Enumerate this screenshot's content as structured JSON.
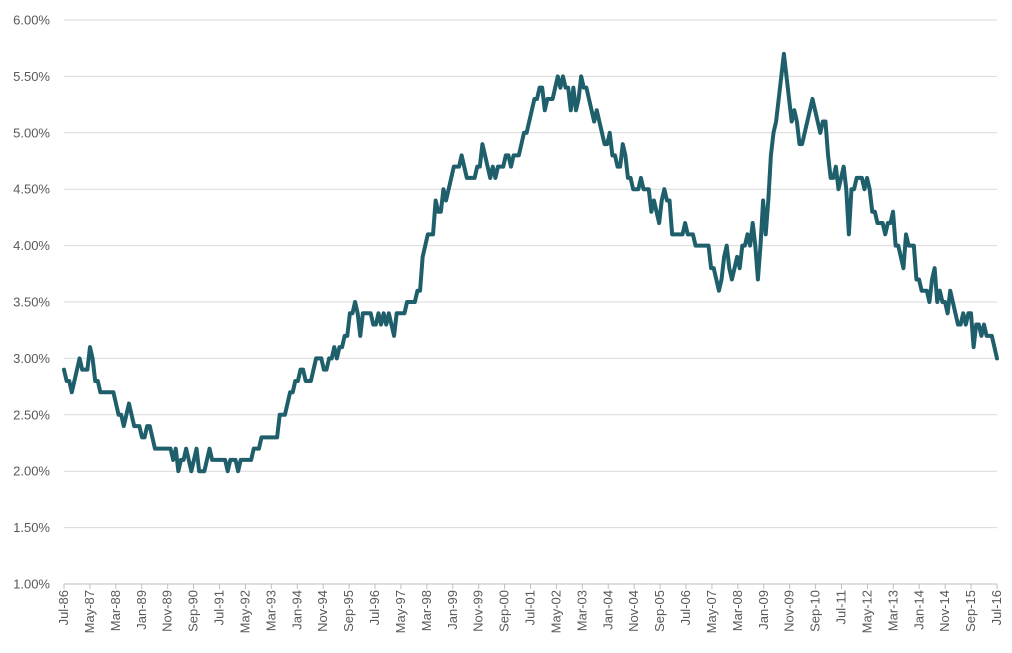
{
  "chart_data": {
    "type": "line",
    "title": "",
    "xlabel": "",
    "ylabel": "",
    "ylim": [
      0.01,
      0.06
    ],
    "y_ticks": [
      "1.00%",
      "1.50%",
      "2.00%",
      "2.50%",
      "3.00%",
      "3.50%",
      "4.00%",
      "4.50%",
      "5.00%",
      "5.50%",
      "6.00%"
    ],
    "x_ticks": [
      "Jul-86",
      "May-87",
      "Mar-88",
      "Jan-89",
      "Nov-89",
      "Sep-90",
      "Jul-91",
      "May-92",
      "Mar-93",
      "Jan-94",
      "Nov-94",
      "Sep-95",
      "Jul-96",
      "May-97",
      "Mar-98",
      "Jan-99",
      "Nov-99",
      "Sep-00",
      "Jul-01",
      "May-02",
      "Mar-03",
      "Jan-04",
      "Nov-04",
      "Sep-05",
      "Jul-06",
      "May-07",
      "Mar-08",
      "Jan-09",
      "Nov-09",
      "Sep-10",
      "Jul-11",
      "May-12",
      "Mar-13",
      "Jan-14",
      "Nov-14",
      "Sep-15",
      "Jul-16"
    ],
    "grid": true,
    "legend": "none",
    "color": "#1f5f6b",
    "x_start": "Jul-86",
    "x_end": "Jul-16",
    "values": [
      2.9,
      2.8,
      2.8,
      2.7,
      2.8,
      2.9,
      3.0,
      2.9,
      2.9,
      2.9,
      3.1,
      3.0,
      2.8,
      2.8,
      2.7,
      2.7,
      2.7,
      2.7,
      2.7,
      2.7,
      2.6,
      2.5,
      2.5,
      2.4,
      2.5,
      2.6,
      2.5,
      2.4,
      2.4,
      2.4,
      2.3,
      2.3,
      2.4,
      2.4,
      2.3,
      2.2,
      2.2,
      2.2,
      2.2,
      2.2,
      2.2,
      2.2,
      2.1,
      2.2,
      2.0,
      2.1,
      2.1,
      2.2,
      2.1,
      2.0,
      2.1,
      2.2,
      2.0,
      2.0,
      2.0,
      2.1,
      2.2,
      2.1,
      2.1,
      2.1,
      2.1,
      2.1,
      2.1,
      2.0,
      2.1,
      2.1,
      2.1,
      2.0,
      2.1,
      2.1,
      2.1,
      2.1,
      2.1,
      2.2,
      2.2,
      2.2,
      2.3,
      2.3,
      2.3,
      2.3,
      2.3,
      2.3,
      2.3,
      2.5,
      2.5,
      2.5,
      2.6,
      2.7,
      2.7,
      2.8,
      2.8,
      2.9,
      2.9,
      2.8,
      2.8,
      2.8,
      2.9,
      3.0,
      3.0,
      3.0,
      2.9,
      2.9,
      3.0,
      3.0,
      3.1,
      3.0,
      3.1,
      3.1,
      3.2,
      3.2,
      3.4,
      3.4,
      3.5,
      3.4,
      3.2,
      3.4,
      3.4,
      3.4,
      3.4,
      3.3,
      3.3,
      3.4,
      3.3,
      3.4,
      3.3,
      3.4,
      3.3,
      3.2,
      3.4,
      3.4,
      3.4,
      3.4,
      3.5,
      3.5,
      3.5,
      3.5,
      3.6,
      3.6,
      3.9,
      4.0,
      4.1,
      4.1,
      4.1,
      4.4,
      4.3,
      4.3,
      4.5,
      4.4,
      4.5,
      4.6,
      4.7,
      4.7,
      4.7,
      4.8,
      4.7,
      4.6,
      4.6,
      4.6,
      4.6,
      4.7,
      4.7,
      4.9,
      4.8,
      4.7,
      4.6,
      4.7,
      4.6,
      4.7,
      4.7,
      4.7,
      4.8,
      4.8,
      4.7,
      4.8,
      4.8,
      4.8,
      4.9,
      5.0,
      5.0,
      5.1,
      5.2,
      5.3,
      5.3,
      5.4,
      5.4,
      5.2,
      5.3,
      5.3,
      5.3,
      5.4,
      5.5,
      5.4,
      5.5,
      5.4,
      5.4,
      5.2,
      5.4,
      5.2,
      5.3,
      5.5,
      5.4,
      5.4,
      5.3,
      5.2,
      5.1,
      5.2,
      5.1,
      5.0,
      4.9,
      4.9,
      5.0,
      4.8,
      4.8,
      4.7,
      4.7,
      4.9,
      4.8,
      4.6,
      4.6,
      4.5,
      4.5,
      4.5,
      4.6,
      4.5,
      4.5,
      4.5,
      4.3,
      4.4,
      4.3,
      4.2,
      4.4,
      4.5,
      4.4,
      4.4,
      4.1,
      4.1,
      4.1,
      4.1,
      4.1,
      4.2,
      4.1,
      4.1,
      4.1,
      4.0,
      4.0,
      4.0,
      4.0,
      4.0,
      4.0,
      3.8,
      3.8,
      3.7,
      3.6,
      3.7,
      3.9,
      4.0,
      3.8,
      3.7,
      3.8,
      3.9,
      3.8,
      4.0,
      4.0,
      4.1,
      4.0,
      4.2,
      4.0,
      3.7,
      4.0,
      4.4,
      4.1,
      4.4,
      4.8,
      5.0,
      5.1,
      5.3,
      5.5,
      5.7,
      5.5,
      5.3,
      5.1,
      5.2,
      5.1,
      4.9,
      4.9,
      5.0,
      5.1,
      5.2,
      5.3,
      5.2,
      5.1,
      5.0,
      5.1,
      5.1,
      4.8,
      4.6,
      4.6,
      4.7,
      4.5,
      4.6,
      4.7,
      4.5,
      4.1,
      4.5,
      4.5,
      4.6,
      4.6,
      4.6,
      4.5,
      4.6,
      4.5,
      4.3,
      4.3,
      4.2,
      4.2,
      4.2,
      4.1,
      4.2,
      4.2,
      4.3,
      4.0,
      4.0,
      3.9,
      3.8,
      4.1,
      4.0,
      4.0,
      4.0,
      3.7,
      3.7,
      3.6,
      3.6,
      3.6,
      3.5,
      3.7,
      3.8,
      3.5,
      3.6,
      3.5,
      3.5,
      3.4,
      3.6,
      3.5,
      3.4,
      3.3,
      3.3,
      3.4,
      3.3,
      3.4,
      3.4,
      3.1,
      3.3,
      3.3,
      3.2,
      3.3,
      3.2,
      3.2,
      3.2,
      3.1,
      3.0
    ]
  }
}
